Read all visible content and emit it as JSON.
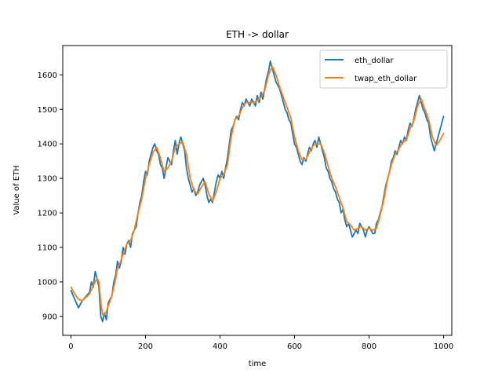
{
  "chart_data": {
    "type": "line",
    "title": "ETH -> dollar",
    "xlabel": "time",
    "ylabel": "Value of ETH",
    "xlim": [
      -22,
      1022
    ],
    "ylim": [
      845,
      1685
    ],
    "xticks": [
      0,
      200,
      400,
      600,
      800,
      1000
    ],
    "yticks": [
      900,
      1000,
      1100,
      1200,
      1300,
      1400,
      1500,
      1600
    ],
    "grid": false,
    "legend_position": "top-right",
    "series": [
      {
        "name": "eth_dollar",
        "color": "#1f77b4",
        "points": [
          [
            0,
            975
          ],
          [
            10,
            950
          ],
          [
            20,
            925
          ],
          [
            30,
            945
          ],
          [
            40,
            958
          ],
          [
            50,
            970
          ],
          [
            55,
            1000
          ],
          [
            60,
            985
          ],
          [
            65,
            1030
          ],
          [
            70,
            1010
          ],
          [
            75,
            985
          ],
          [
            80,
            900
          ],
          [
            85,
            885
          ],
          [
            90,
            910
          ],
          [
            95,
            890
          ],
          [
            100,
            940
          ],
          [
            110,
            960
          ],
          [
            115,
            1000
          ],
          [
            120,
            1020
          ],
          [
            125,
            1060
          ],
          [
            130,
            1040
          ],
          [
            135,
            1060
          ],
          [
            140,
            1100
          ],
          [
            145,
            1080
          ],
          [
            150,
            1110
          ],
          [
            155,
            1120
          ],
          [
            160,
            1100
          ],
          [
            165,
            1140
          ],
          [
            170,
            1150
          ],
          [
            175,
            1160
          ],
          [
            180,
            1200
          ],
          [
            185,
            1230
          ],
          [
            190,
            1250
          ],
          [
            195,
            1290
          ],
          [
            200,
            1320
          ],
          [
            205,
            1310
          ],
          [
            210,
            1350
          ],
          [
            215,
            1370
          ],
          [
            220,
            1390
          ],
          [
            225,
            1400
          ],
          [
            230,
            1380
          ],
          [
            235,
            1370
          ],
          [
            240,
            1340
          ],
          [
            245,
            1330
          ],
          [
            250,
            1300
          ],
          [
            255,
            1330
          ],
          [
            260,
            1360
          ],
          [
            265,
            1350
          ],
          [
            270,
            1340
          ],
          [
            275,
            1380
          ],
          [
            280,
            1410
          ],
          [
            285,
            1370
          ],
          [
            290,
            1400
          ],
          [
            295,
            1420
          ],
          [
            300,
            1400
          ],
          [
            305,
            1380
          ],
          [
            310,
            1330
          ],
          [
            315,
            1300
          ],
          [
            320,
            1280
          ],
          [
            325,
            1260
          ],
          [
            330,
            1270
          ],
          [
            335,
            1250
          ],
          [
            340,
            1260
          ],
          [
            345,
            1280
          ],
          [
            350,
            1290
          ],
          [
            355,
            1300
          ],
          [
            360,
            1280
          ],
          [
            365,
            1250
          ],
          [
            370,
            1230
          ],
          [
            375,
            1240
          ],
          [
            380,
            1230
          ],
          [
            385,
            1260
          ],
          [
            390,
            1290
          ],
          [
            395,
            1310
          ],
          [
            400,
            1300
          ],
          [
            405,
            1320
          ],
          [
            410,
            1300
          ],
          [
            415,
            1330
          ],
          [
            420,
            1360
          ],
          [
            425,
            1400
          ],
          [
            430,
            1440
          ],
          [
            435,
            1450
          ],
          [
            440,
            1470
          ],
          [
            445,
            1480
          ],
          [
            450,
            1470
          ],
          [
            455,
            1500
          ],
          [
            460,
            1520
          ],
          [
            465,
            1510
          ],
          [
            470,
            1530
          ],
          [
            475,
            1520
          ],
          [
            480,
            1510
          ],
          [
            485,
            1530
          ],
          [
            490,
            1520
          ],
          [
            495,
            1510
          ],
          [
            500,
            1540
          ],
          [
            505,
            1520
          ],
          [
            510,
            1550
          ],
          [
            515,
            1530
          ],
          [
            520,
            1560
          ],
          [
            525,
            1590
          ],
          [
            530,
            1610
          ],
          [
            535,
            1640
          ],
          [
            540,
            1620
          ],
          [
            545,
            1600
          ],
          [
            550,
            1580
          ],
          [
            555,
            1570
          ],
          [
            560,
            1560
          ],
          [
            565,
            1540
          ],
          [
            570,
            1520
          ],
          [
            575,
            1500
          ],
          [
            580,
            1490
          ],
          [
            585,
            1470
          ],
          [
            590,
            1460
          ],
          [
            595,
            1430
          ],
          [
            600,
            1400
          ],
          [
            605,
            1390
          ],
          [
            610,
            1370
          ],
          [
            615,
            1350
          ],
          [
            620,
            1340
          ],
          [
            625,
            1360
          ],
          [
            630,
            1350
          ],
          [
            635,
            1370
          ],
          [
            640,
            1390
          ],
          [
            645,
            1380
          ],
          [
            650,
            1400
          ],
          [
            655,
            1410
          ],
          [
            660,
            1390
          ],
          [
            665,
            1420
          ],
          [
            670,
            1400
          ],
          [
            675,
            1380
          ],
          [
            680,
            1360
          ],
          [
            685,
            1330
          ],
          [
            690,
            1320
          ],
          [
            695,
            1300
          ],
          [
            700,
            1290
          ],
          [
            705,
            1270
          ],
          [
            710,
            1260
          ],
          [
            715,
            1240
          ],
          [
            720,
            1230
          ],
          [
            725,
            1200
          ],
          [
            730,
            1210
          ],
          [
            735,
            1180
          ],
          [
            740,
            1160
          ],
          [
            745,
            1170
          ],
          [
            750,
            1150
          ],
          [
            755,
            1130
          ],
          [
            760,
            1140
          ],
          [
            765,
            1150
          ],
          [
            770,
            1140
          ],
          [
            775,
            1170
          ],
          [
            780,
            1160
          ],
          [
            785,
            1150
          ],
          [
            790,
            1130
          ],
          [
            795,
            1150
          ],
          [
            800,
            1160
          ],
          [
            805,
            1150
          ],
          [
            810,
            1140
          ],
          [
            815,
            1140
          ],
          [
            820,
            1170
          ],
          [
            825,
            1180
          ],
          [
            830,
            1200
          ],
          [
            835,
            1220
          ],
          [
            840,
            1250
          ],
          [
            845,
            1280
          ],
          [
            850,
            1300
          ],
          [
            855,
            1320
          ],
          [
            860,
            1350
          ],
          [
            865,
            1360
          ],
          [
            870,
            1380
          ],
          [
            875,
            1370
          ],
          [
            880,
            1390
          ],
          [
            885,
            1410
          ],
          [
            890,
            1400
          ],
          [
            895,
            1420
          ],
          [
            900,
            1410
          ],
          [
            905,
            1440
          ],
          [
            910,
            1460
          ],
          [
            915,
            1450
          ],
          [
            920,
            1470
          ],
          [
            925,
            1500
          ],
          [
            930,
            1520
          ],
          [
            935,
            1540
          ],
          [
            940,
            1520
          ],
          [
            945,
            1500
          ],
          [
            950,
            1490
          ],
          [
            955,
            1470
          ],
          [
            960,
            1460
          ],
          [
            965,
            1420
          ],
          [
            970,
            1400
          ],
          [
            975,
            1380
          ],
          [
            980,
            1400
          ],
          [
            985,
            1420
          ],
          [
            990,
            1440
          ],
          [
            995,
            1460
          ],
          [
            1000,
            1480
          ]
        ]
      },
      {
        "name": "twap_eth_dollar",
        "color": "#ff7f0e",
        "points": [
          [
            0,
            985
          ],
          [
            10,
            965
          ],
          [
            20,
            950
          ],
          [
            30,
            945
          ],
          [
            40,
            955
          ],
          [
            50,
            965
          ],
          [
            60,
            990
          ],
          [
            70,
            1010
          ],
          [
            75,
            1000
          ],
          [
            80,
            940
          ],
          [
            85,
            905
          ],
          [
            90,
            905
          ],
          [
            95,
            915
          ],
          [
            100,
            930
          ],
          [
            110,
            960
          ],
          [
            120,
            1010
          ],
          [
            125,
            1040
          ],
          [
            130,
            1050
          ],
          [
            140,
            1080
          ],
          [
            150,
            1110
          ],
          [
            160,
            1120
          ],
          [
            170,
            1150
          ],
          [
            180,
            1200
          ],
          [
            190,
            1240
          ],
          [
            200,
            1300
          ],
          [
            210,
            1340
          ],
          [
            220,
            1375
          ],
          [
            230,
            1390
          ],
          [
            240,
            1360
          ],
          [
            250,
            1320
          ],
          [
            260,
            1330
          ],
          [
            270,
            1350
          ],
          [
            280,
            1390
          ],
          [
            290,
            1400
          ],
          [
            300,
            1405
          ],
          [
            310,
            1370
          ],
          [
            320,
            1300
          ],
          [
            330,
            1265
          ],
          [
            340,
            1255
          ],
          [
            350,
            1275
          ],
          [
            360,
            1290
          ],
          [
            370,
            1255
          ],
          [
            380,
            1235
          ],
          [
            390,
            1260
          ],
          [
            400,
            1300
          ],
          [
            410,
            1310
          ],
          [
            420,
            1340
          ],
          [
            430,
            1420
          ],
          [
            440,
            1470
          ],
          [
            450,
            1480
          ],
          [
            460,
            1505
          ],
          [
            470,
            1520
          ],
          [
            480,
            1520
          ],
          [
            490,
            1520
          ],
          [
            500,
            1525
          ],
          [
            510,
            1535
          ],
          [
            520,
            1555
          ],
          [
            530,
            1600
          ],
          [
            540,
            1625
          ],
          [
            550,
            1600
          ],
          [
            560,
            1565
          ],
          [
            570,
            1535
          ],
          [
            580,
            1505
          ],
          [
            590,
            1475
          ],
          [
            600,
            1420
          ],
          [
            610,
            1380
          ],
          [
            620,
            1355
          ],
          [
            630,
            1355
          ],
          [
            640,
            1375
          ],
          [
            650,
            1395
          ],
          [
            660,
            1400
          ],
          [
            670,
            1400
          ],
          [
            680,
            1375
          ],
          [
            690,
            1335
          ],
          [
            700,
            1300
          ],
          [
            710,
            1275
          ],
          [
            720,
            1245
          ],
          [
            730,
            1215
          ],
          [
            740,
            1175
          ],
          [
            750,
            1165
          ],
          [
            760,
            1150
          ],
          [
            770,
            1155
          ],
          [
            780,
            1160
          ],
          [
            790,
            1150
          ],
          [
            800,
            1155
          ],
          [
            810,
            1150
          ],
          [
            820,
            1155
          ],
          [
            830,
            1195
          ],
          [
            840,
            1240
          ],
          [
            850,
            1300
          ],
          [
            860,
            1340
          ],
          [
            870,
            1370
          ],
          [
            880,
            1385
          ],
          [
            890,
            1405
          ],
          [
            900,
            1410
          ],
          [
            910,
            1445
          ],
          [
            920,
            1465
          ],
          [
            930,
            1510
          ],
          [
            940,
            1530
          ],
          [
            950,
            1500
          ],
          [
            960,
            1470
          ],
          [
            970,
            1420
          ],
          [
            980,
            1395
          ],
          [
            990,
            1410
          ],
          [
            1000,
            1430
          ]
        ]
      }
    ]
  }
}
